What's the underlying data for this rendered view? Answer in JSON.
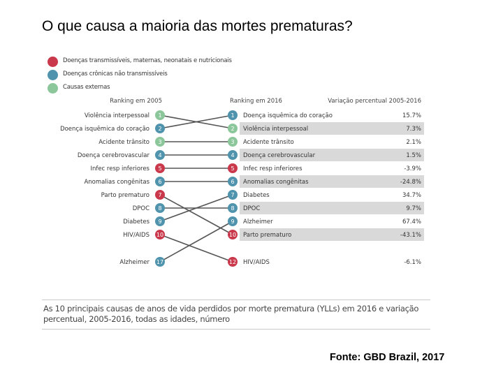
{
  "slide": {
    "title": "O que causa a maioria das mortes prematuras?",
    "source": "Fonte: GBD Brazil, 2017"
  },
  "legend": [
    {
      "label": "Doenças transmissíveis, maternas, neonatais e nutricionais",
      "color": "#c9384b"
    },
    {
      "label": "Doenças crônicas não transmissíveis",
      "color": "#4f93ad"
    },
    {
      "label": "Causas externas",
      "color": "#8cc79b"
    }
  ],
  "headers": {
    "left": "Ranking em 2005",
    "right": "Ranking em 2016",
    "change": "Variação percentual 2005-2016"
  },
  "colors": {
    "group1": "#c9384b",
    "group2": "#4f93ad",
    "group3": "#8cc79b",
    "line": "#555555",
    "row_shade": "#d9d9d9"
  },
  "left_items": [
    {
      "label": "Violência interpessoal",
      "rank": "1",
      "group": "group3"
    },
    {
      "label": "Doença isquêmica do coração",
      "rank": "2",
      "group": "group2"
    },
    {
      "label": "Acidente trânsito",
      "rank": "3",
      "group": "group3"
    },
    {
      "label": "Doença cerebrovascular",
      "rank": "4",
      "group": "group2"
    },
    {
      "label": "Infec resp inferiores",
      "rank": "5",
      "group": "group1"
    },
    {
      "label": "Anomalias congênitas",
      "rank": "6",
      "group": "group2"
    },
    {
      "label": "Parto prematuro",
      "rank": "7",
      "group": "group1"
    },
    {
      "label": "DPOC",
      "rank": "8",
      "group": "group2"
    },
    {
      "label": "Diabetes",
      "rank": "9",
      "group": "group2"
    },
    {
      "label": "HIV/AIDS",
      "rank": "10",
      "group": "group1"
    },
    {
      "label": "Alzheimer",
      "rank": "17",
      "group": "group2"
    }
  ],
  "right_items": [
    {
      "label": "Doença isquêmica do coração",
      "rank": "1",
      "group": "group2",
      "change": "15.7%",
      "shaded": false
    },
    {
      "label": "Violência interpessoal",
      "rank": "2",
      "group": "group3",
      "change": "7.3%",
      "shaded": true
    },
    {
      "label": "Acidente trânsito",
      "rank": "3",
      "group": "group3",
      "change": "2.1%",
      "shaded": false
    },
    {
      "label": "Doença cerebrovascular",
      "rank": "4",
      "group": "group2",
      "change": "1.5%",
      "shaded": true
    },
    {
      "label": "Infec resp inferiores",
      "rank": "5",
      "group": "group1",
      "change": "-3.9%",
      "shaded": false
    },
    {
      "label": "Anomalias congênitas",
      "rank": "6",
      "group": "group2",
      "change": "-24.8%",
      "shaded": true
    },
    {
      "label": "Diabetes",
      "rank": "7",
      "group": "group2",
      "change": "34.7%",
      "shaded": false
    },
    {
      "label": "DPOC",
      "rank": "8",
      "group": "group2",
      "change": "9.7%",
      "shaded": true
    },
    {
      "label": "Alzheimer",
      "rank": "9",
      "group": "group2",
      "change": "67.4%",
      "shaded": false
    },
    {
      "label": "Parto prematuro",
      "rank": "10",
      "group": "group1",
      "change": "-43.1%",
      "shaded": true
    },
    {
      "label": "HIV/AIDS",
      "rank": "12",
      "group": "group1",
      "change": "-6.1%",
      "shaded": false
    }
  ],
  "links": [
    {
      "from": 0,
      "to": 1
    },
    {
      "from": 1,
      "to": 0
    },
    {
      "from": 2,
      "to": 2
    },
    {
      "from": 3,
      "to": 3
    },
    {
      "from": 4,
      "to": 4
    },
    {
      "from": 5,
      "to": 5
    },
    {
      "from": 6,
      "to": 9
    },
    {
      "from": 7,
      "to": 7
    },
    {
      "from": 8,
      "to": 6
    },
    {
      "from": 9,
      "to": 10
    },
    {
      "from": 10,
      "to": 8
    }
  ],
  "caption": "As 10 principais causas de anos de vida perdidos por morte prematura (YLLs) em 2016 e variação percentual, 2005-2016, todas as idades, número"
}
